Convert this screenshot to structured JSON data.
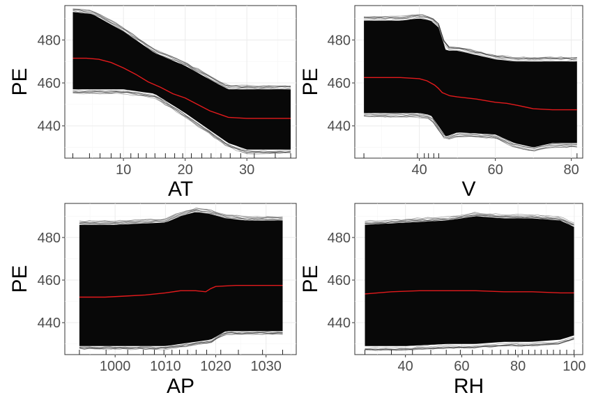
{
  "chart_data": [
    {
      "type": "line",
      "title": "",
      "xlabel": "AT",
      "ylabel": "PE",
      "xlim": [
        0.5,
        38
      ],
      "ylim": [
        425,
        496
      ],
      "xticks": [
        10,
        20,
        30
      ],
      "yticks": [
        440,
        460,
        480
      ],
      "rug": [
        1.8,
        4.5,
        6.2,
        8.0,
        9.5,
        11.2,
        12.4,
        13.7,
        15.1,
        16.8,
        18.3,
        19.6,
        21.0,
        22.7,
        24.2,
        25.8,
        27.3,
        29.0,
        31.2,
        34.6,
        37.1
      ],
      "grid": true,
      "ice_band": {
        "x": [
          1.8,
          5,
          10,
          15,
          20,
          25,
          27,
          30,
          37.1
        ],
        "upper": [
          493,
          492,
          484,
          474,
          468,
          460,
          457,
          457,
          457
        ],
        "lower": [
          457,
          457,
          457,
          455,
          446,
          436,
          432,
          429,
          429
        ]
      },
      "pdp": {
        "name": "",
        "color": "#e41a1c",
        "x": [
          1.8,
          4,
          6,
          8,
          10,
          12,
          14,
          16,
          18,
          20,
          22,
          24,
          26,
          27,
          30,
          33,
          37.1
        ],
        "y": [
          471.5,
          471.5,
          471,
          469.5,
          467,
          464,
          460.5,
          458,
          455,
          453,
          450,
          447,
          445,
          444,
          443.5,
          443.5,
          443.5
        ]
      }
    },
    {
      "type": "line",
      "title": "",
      "xlabel": "V",
      "ylabel": "PE",
      "xlim": [
        23,
        83
      ],
      "ylim": [
        425,
        496
      ],
      "xticks": [
        40,
        60,
        80
      ],
      "yticks": [
        440,
        460,
        480
      ],
      "rug": [
        25.4,
        39.5,
        41.3,
        42.4,
        43.8,
        45.1,
        81.5
      ],
      "grid": true,
      "ice_band": {
        "x": [
          25.4,
          35,
          40,
          43,
          45,
          47,
          50,
          60,
          65,
          70,
          75,
          81.5
        ],
        "upper": [
          489,
          489,
          490,
          489,
          486,
          475,
          475,
          471,
          470,
          470,
          470,
          470
        ],
        "lower": [
          446,
          446,
          446,
          445,
          440,
          435,
          437,
          436,
          432,
          430,
          432,
          432
        ]
      },
      "pdp": {
        "name": "",
        "color": "#e41a1c",
        "x": [
          25.4,
          30,
          35,
          40,
          42,
          44,
          45,
          46,
          48,
          50,
          55,
          60,
          63,
          66,
          70,
          75,
          81.5
        ],
        "y": [
          462.5,
          462.5,
          462.5,
          462,
          461,
          459,
          457.5,
          455.5,
          454,
          453.5,
          452.5,
          451,
          450.5,
          449.5,
          448,
          447.5,
          447.5
        ]
      }
    },
    {
      "type": "line",
      "title": "",
      "xlabel": "AP",
      "ylabel": "PE",
      "xlim": [
        990,
        1036
      ],
      "ylim": [
        425,
        496
      ],
      "xticks": [
        1000,
        1010,
        1020,
        1030
      ],
      "yticks": [
        440,
        460,
        480
      ],
      "rug": [
        992.9,
        998.2,
        1002.5,
        1005.6,
        1007.8,
        1009.7,
        1011.3,
        1012.8,
        1014.4,
        1016.1,
        1018.2,
        1021.0,
        1024.5,
        1029.3,
        1033.3
      ],
      "grid": true,
      "ice_band": {
        "x": [
          992.9,
          1000,
          1010,
          1013,
          1016,
          1019,
          1022,
          1026,
          1033.3
        ],
        "upper": [
          486,
          486,
          487,
          490,
          492,
          491,
          489,
          488,
          488
        ],
        "lower": [
          429,
          429,
          429,
          430,
          431,
          432,
          436,
          436,
          436
        ]
      },
      "pdp": {
        "name": "",
        "color": "#e41a1c",
        "x": [
          992.9,
          998,
          1002,
          1006,
          1010,
          1013,
          1016,
          1018,
          1019,
          1020,
          1024,
          1028,
          1033.3
        ],
        "y": [
          452,
          452,
          452.5,
          453,
          454,
          455,
          455,
          454.5,
          456,
          457,
          457.5,
          457.5,
          457.5
        ]
      }
    },
    {
      "type": "line",
      "title": "",
      "xlabel": "RH",
      "ylabel": "PE",
      "xlim": [
        22,
        103
      ],
      "ylim": [
        425,
        496
      ],
      "xticks": [
        40,
        60,
        80,
        100
      ],
      "yticks": [
        440,
        460,
        480
      ],
      "rug": [
        25.6,
        35.0,
        42.5,
        49.0,
        54.5,
        59.5,
        63.8,
        67.5,
        70.8,
        73.8,
        76.5,
        79.1,
        81.5,
        83.8,
        86.0,
        88.2,
        90.4,
        92.6,
        94.9,
        97.3,
        99.9
      ],
      "grid": true,
      "ice_band": {
        "x": [
          25.6,
          40,
          55,
          65,
          75,
          85,
          95,
          99.9
        ],
        "upper": [
          486,
          487,
          488,
          490,
          489,
          489,
          488,
          485
        ],
        "lower": [
          429,
          429,
          430,
          430,
          431,
          431,
          432,
          434
        ]
      },
      "pdp": {
        "name": "",
        "color": "#e41a1c",
        "x": [
          25.6,
          35,
          45,
          55,
          65,
          75,
          85,
          95,
          99.9
        ],
        "y": [
          453.5,
          454.5,
          455,
          455,
          455,
          454.5,
          454.5,
          454,
          454
        ]
      }
    }
  ]
}
